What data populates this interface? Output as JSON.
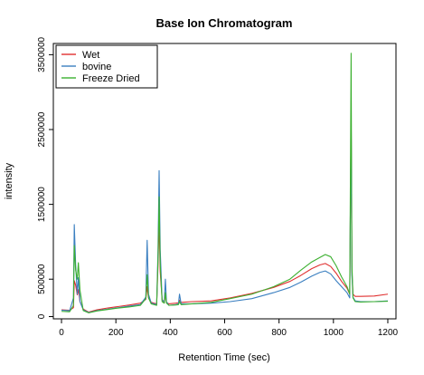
{
  "chart_data": {
    "type": "line",
    "title": "Base Ion Chromatogram",
    "xlabel": "Retention Time (sec)",
    "ylabel": "intensity",
    "xlim": [
      -30,
      1230
    ],
    "ylim": [
      -30000,
      3650000
    ],
    "x_ticks": [
      0,
      200,
      400,
      600,
      800,
      1000,
      1200
    ],
    "y_ticks": [
      0,
      500000,
      1500000,
      2500000,
      3500000
    ],
    "grid": false,
    "legend_position": "top-left",
    "series": [
      {
        "name": "Wet",
        "color": "#e03030",
        "x": [
          0,
          30,
          44,
          47,
          52,
          58,
          62,
          68,
          80,
          100,
          130,
          170,
          210,
          250,
          290,
          310,
          315,
          320,
          330,
          350,
          355,
          359,
          363,
          370,
          378,
          382,
          386,
          395,
          420,
          430,
          434,
          440,
          480,
          550,
          620,
          700,
          780,
          840,
          880,
          920,
          950,
          970,
          990,
          1010,
          1030,
          1050,
          1060,
          1065,
          1068,
          1072,
          1080,
          1100,
          1150,
          1200
        ],
        "y": [
          90000,
          85000,
          120000,
          480000,
          420000,
          290000,
          360000,
          200000,
          100000,
          60000,
          90000,
          115000,
          135000,
          155000,
          180000,
          230000,
          400000,
          250000,
          190000,
          170000,
          700000,
          1300000,
          600000,
          230000,
          190000,
          300000,
          190000,
          170000,
          180000,
          185000,
          220000,
          190000,
          200000,
          210000,
          250000,
          310000,
          390000,
          470000,
          550000,
          640000,
          690000,
          710000,
          670000,
          580000,
          470000,
          380000,
          300000,
          2650000,
          600000,
          300000,
          270000,
          270000,
          275000,
          300000
        ]
      },
      {
        "name": "bovine",
        "color": "#3a7fc0",
        "x": [
          0,
          30,
          44,
          47,
          52,
          58,
          62,
          68,
          80,
          100,
          130,
          170,
          210,
          250,
          290,
          310,
          315,
          320,
          330,
          350,
          355,
          359,
          363,
          370,
          378,
          382,
          386,
          395,
          420,
          430,
          434,
          440,
          480,
          550,
          620,
          700,
          780,
          840,
          880,
          920,
          950,
          970,
          990,
          1010,
          1030,
          1050,
          1060,
          1065,
          1068,
          1072,
          1080,
          1100,
          1150,
          1200
        ],
        "y": [
          85000,
          80000,
          250000,
          1230000,
          700000,
          300000,
          520000,
          200000,
          90000,
          55000,
          80000,
          100000,
          120000,
          140000,
          160000,
          260000,
          1020000,
          300000,
          180000,
          160000,
          900000,
          1950000,
          900000,
          220000,
          200000,
          500000,
          200000,
          150000,
          160000,
          170000,
          300000,
          170000,
          170000,
          180000,
          200000,
          240000,
          320000,
          390000,
          460000,
          540000,
          590000,
          610000,
          570000,
          480000,
          400000,
          320000,
          250000,
          2700000,
          550000,
          260000,
          210000,
          200000,
          200000,
          210000
        ]
      },
      {
        "name": "Freeze Dried",
        "color": "#3cb030",
        "x": [
          0,
          30,
          44,
          47,
          52,
          58,
          62,
          68,
          80,
          100,
          130,
          170,
          210,
          250,
          290,
          310,
          315,
          320,
          330,
          350,
          355,
          359,
          363,
          370,
          378,
          382,
          386,
          395,
          420,
          430,
          434,
          440,
          480,
          550,
          620,
          700,
          780,
          840,
          880,
          920,
          950,
          970,
          990,
          1010,
          1030,
          1050,
          1060,
          1065,
          1068,
          1072,
          1080,
          1100,
          1150,
          1200
        ],
        "y": [
          70000,
          65000,
          150000,
          950000,
          620000,
          500000,
          720000,
          350000,
          80000,
          50000,
          75000,
          95000,
          115000,
          130000,
          150000,
          240000,
          560000,
          250000,
          170000,
          150000,
          800000,
          1600000,
          700000,
          200000,
          180000,
          320000,
          180000,
          150000,
          155000,
          160000,
          200000,
          160000,
          170000,
          190000,
          240000,
          300000,
          400000,
          500000,
          620000,
          730000,
          790000,
          830000,
          800000,
          680000,
          530000,
          400000,
          300000,
          3520000,
          700000,
          250000,
          200000,
          195000,
          200000,
          205000
        ]
      }
    ]
  }
}
